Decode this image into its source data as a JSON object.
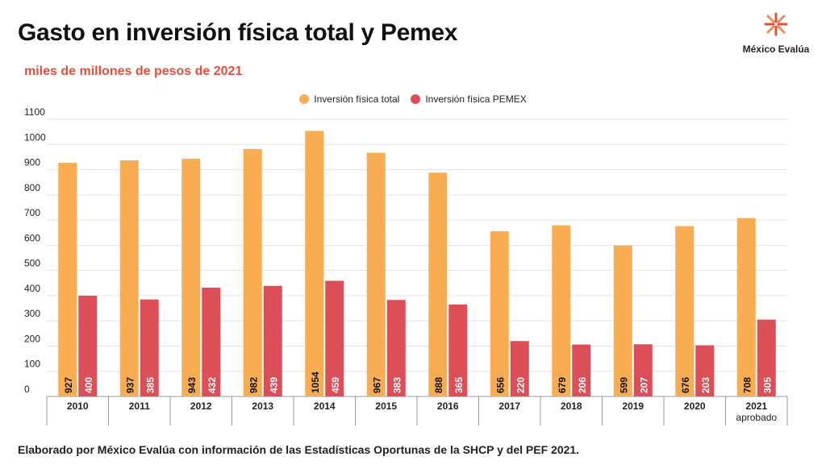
{
  "header": {
    "title": "Gasto en inversión física total y Pemex",
    "subtitle": "miles de millones de pesos de 2021",
    "logo_text": "México Evalúa"
  },
  "footer": {
    "source": "Elaborado por México Evalúa con información de las Estadísticas Oportunas de la SHCP y del PEF 2021."
  },
  "colors": {
    "total": "#f8ad52",
    "pemex": "#dc4e58",
    "accent": "#e0503c"
  },
  "chart_data": {
    "type": "bar",
    "categories": [
      "2010",
      "2011",
      "2012",
      "2013",
      "2014",
      "2015",
      "2016",
      "2017",
      "2018",
      "2019",
      "2020",
      "2021 aprobado"
    ],
    "series": [
      {
        "name": "Inversión física total",
        "values": [
          927,
          937,
          943,
          982,
          1054,
          967,
          888,
          656,
          679,
          599,
          676,
          708
        ]
      },
      {
        "name": "Inversión física PEMEX",
        "values": [
          400,
          385,
          432,
          439,
          459,
          383,
          365,
          220,
          206,
          207,
          203,
          305
        ]
      }
    ],
    "yticks": [
      0,
      100,
      200,
      300,
      400,
      500,
      600,
      700,
      800,
      900,
      1000,
      1100
    ],
    "ylim": [
      0,
      1100
    ],
    "grid": true,
    "legend": "top-center",
    "data_labels": "inside-bottom-rotated"
  }
}
